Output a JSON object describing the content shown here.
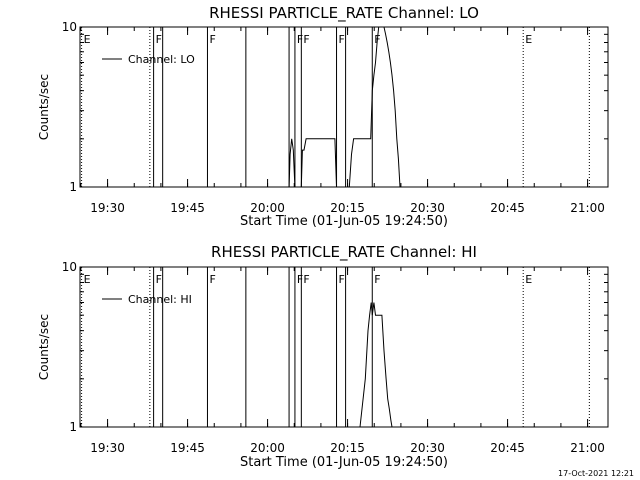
{
  "footer": {
    "timestamp": "17-Oct-2021 12:21"
  },
  "chart_data": [
    {
      "type": "line",
      "title": "RHESSI PARTICLE_RATE Channel: LO",
      "xlabel": "Start Time (01-Jun-05 19:24:50)",
      "ylabel": "Counts/sec",
      "x_units": "minutes since 19:24:50",
      "xlim": [
        0,
        99
      ],
      "ylim": [
        1,
        10
      ],
      "yscale": "log",
      "grid": false,
      "legend_position": "top-left",
      "x_ticks": [
        {
          "x": 5.17,
          "label": "19:30"
        },
        {
          "x": 20.17,
          "label": "19:45"
        },
        {
          "x": 35.17,
          "label": "20:00"
        },
        {
          "x": 50.17,
          "label": "20:15"
        },
        {
          "x": 65.17,
          "label": "20:30"
        },
        {
          "x": 80.17,
          "label": "20:45"
        },
        {
          "x": 95.17,
          "label": "21:00"
        }
      ],
      "y_ticks": [
        {
          "y": 1,
          "label": "1"
        },
        {
          "y": 10,
          "label": "10"
        }
      ],
      "markers": [
        {
          "x": 0.3,
          "label": "E",
          "style": "dotted"
        },
        {
          "x": 13.1,
          "label": "",
          "style": "dotted"
        },
        {
          "x": 13.8,
          "label": "F",
          "style": "solid"
        },
        {
          "x": 15.5,
          "label": "",
          "style": "solid"
        },
        {
          "x": 23.9,
          "label": "F",
          "style": "solid"
        },
        {
          "x": 31.1,
          "label": "",
          "style": "solid"
        },
        {
          "x": 39.2,
          "label": "",
          "style": "solid"
        },
        {
          "x": 40.3,
          "label": "F",
          "style": "solid"
        },
        {
          "x": 41.5,
          "label": "F",
          "style": "solid"
        },
        {
          "x": 48.1,
          "label": "F",
          "style": "solid"
        },
        {
          "x": 49.8,
          "label": "",
          "style": "solid"
        },
        {
          "x": 54.8,
          "label": "F",
          "style": "solid"
        },
        {
          "x": 83.1,
          "label": "E",
          "style": "dotted"
        },
        {
          "x": 95.5,
          "label": "",
          "style": "dotted"
        }
      ],
      "series": [
        {
          "name": "Channel: LO",
          "x": [
            31.1,
            31.6,
            32.2,
            32.7,
            33.2,
            33.7,
            34.2,
            34.8,
            35.3,
            35.8,
            36.3,
            36.8,
            37.4,
            37.9,
            38.4,
            39.2,
            39.4,
            39.7,
            40.0,
            40.3,
            41.5,
            41.7,
            42.0,
            42.4,
            42.7,
            43.0,
            43.3,
            43.6,
            43.9,
            44.2,
            44.5,
            44.8,
            45.1,
            45.4,
            45.7,
            46.0,
            46.3,
            46.6,
            46.9,
            47.2,
            47.5,
            47.8,
            48.1,
            49.8,
            50.1,
            50.5,
            50.9,
            51.3,
            51.7,
            52.1,
            52.5,
            52.9,
            53.3,
            53.7,
            54.1,
            54.5,
            54.8,
            55.1,
            55.4,
            55.7,
            56.0,
            56.3,
            56.6,
            57.0,
            57.3,
            57.6,
            57.9,
            58.2,
            58.5,
            58.8,
            59.1,
            59.4,
            59.7,
            60.0,
            60.3
          ],
          "values": [
            1,
            1,
            1,
            1,
            1,
            1,
            1,
            1,
            1,
            1,
            1,
            1,
            1,
            1,
            1,
            1,
            1.6,
            2,
            1.7,
            1,
            1,
            1.7,
            1.7,
            2,
            2,
            2,
            2,
            2,
            2,
            2,
            2,
            2,
            2,
            2,
            2,
            2,
            2,
            2,
            2,
            2,
            2,
            2,
            1,
            1,
            1,
            1,
            1.6,
            2,
            2,
            2,
            2,
            2,
            2,
            2,
            2,
            2,
            4,
            5,
            6,
            8,
            10,
            10,
            10,
            10,
            9,
            8,
            7,
            6,
            5,
            4,
            3,
            2,
            1.5,
            1,
            1
          ]
        }
      ]
    },
    {
      "type": "line",
      "title": "RHESSI PARTICLE_RATE Channel: HI",
      "xlabel": "Start Time (01-Jun-05 19:24:50)",
      "ylabel": "Counts/sec",
      "x_units": "minutes since 19:24:50",
      "xlim": [
        0,
        99
      ],
      "ylim": [
        1,
        10
      ],
      "yscale": "log",
      "grid": false,
      "legend_position": "top-left",
      "x_ticks": [
        {
          "x": 5.17,
          "label": "19:30"
        },
        {
          "x": 20.17,
          "label": "19:45"
        },
        {
          "x": 35.17,
          "label": "20:00"
        },
        {
          "x": 50.17,
          "label": "20:15"
        },
        {
          "x": 65.17,
          "label": "20:30"
        },
        {
          "x": 80.17,
          "label": "20:45"
        },
        {
          "x": 95.17,
          "label": "21:00"
        }
      ],
      "y_ticks": [
        {
          "y": 1,
          "label": "1"
        },
        {
          "y": 10,
          "label": "10"
        }
      ],
      "markers": [
        {
          "x": 0.3,
          "label": "E",
          "style": "dotted"
        },
        {
          "x": 13.1,
          "label": "",
          "style": "dotted"
        },
        {
          "x": 13.8,
          "label": "F",
          "style": "solid"
        },
        {
          "x": 15.5,
          "label": "",
          "style": "solid"
        },
        {
          "x": 23.9,
          "label": "F",
          "style": "solid"
        },
        {
          "x": 31.1,
          "label": "",
          "style": "solid"
        },
        {
          "x": 39.2,
          "label": "",
          "style": "solid"
        },
        {
          "x": 40.3,
          "label": "F",
          "style": "solid"
        },
        {
          "x": 41.5,
          "label": "F",
          "style": "solid"
        },
        {
          "x": 48.1,
          "label": "F",
          "style": "solid"
        },
        {
          "x": 49.8,
          "label": "",
          "style": "solid"
        },
        {
          "x": 54.8,
          "label": "F",
          "style": "solid"
        },
        {
          "x": 83.1,
          "label": "E",
          "style": "dotted"
        },
        {
          "x": 95.5,
          "label": "",
          "style": "dotted"
        }
      ],
      "series": [
        {
          "name": "Channel: HI",
          "x": [
            31.1,
            32.5,
            34.0,
            35.5,
            37.0,
            38.5,
            39.2,
            40.3,
            41.5,
            43.0,
            44.5,
            46.0,
            47.5,
            48.1,
            49.8,
            51.0,
            52.5,
            53.5,
            54.0,
            54.3,
            54.6,
            54.8,
            55.1,
            55.4,
            55.7,
            56.0,
            56.3,
            56.6,
            57.0,
            57.4,
            57.7,
            58.0,
            58.3,
            58.5
          ],
          "values": [
            1,
            1,
            1,
            1,
            1,
            1,
            1,
            1,
            1,
            1,
            1,
            1,
            1,
            1,
            1,
            1,
            1,
            2,
            4,
            5,
            6,
            5,
            6,
            5,
            5,
            5,
            5,
            5,
            3,
            2,
            1.5,
            1.3,
            1.1,
            1
          ]
        }
      ]
    }
  ]
}
